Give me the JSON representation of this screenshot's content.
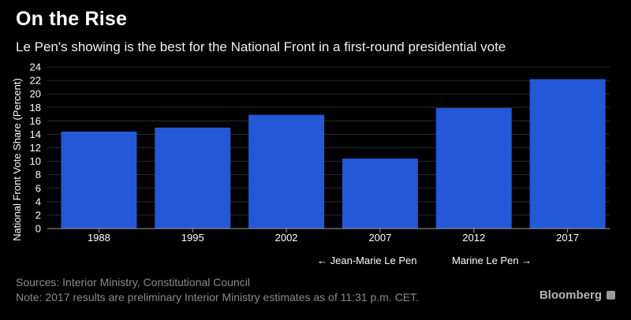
{
  "title": "On the Rise",
  "subtitle": "Le Pen's showing is the best for the National Front in a first-round presidential vote",
  "chart_data": {
    "type": "bar",
    "categories": [
      "1988",
      "1995",
      "2002",
      "2007",
      "2012",
      "2017"
    ],
    "values": [
      14.4,
      15.0,
      16.9,
      10.4,
      17.9,
      22.2
    ],
    "ylabel": "National Front Vote Share (Percent)",
    "xlabel": "",
    "ylim": [
      0,
      24
    ],
    "yticks": [
      0,
      2,
      4,
      6,
      8,
      10,
      12,
      14,
      16,
      18,
      20,
      22,
      24
    ],
    "grid": true,
    "bar_color": "#2358d8",
    "annotations": [
      "← Jean-Marie Le Pen",
      "Marine Le Pen →"
    ]
  },
  "footer": {
    "sources": "Sources: Interior Ministry, Constitutional Council",
    "note": "Note: 2017 results are preliminary Interior Ministry estimates as of 11:31 p.m. CET."
  },
  "brand": "Bloomberg"
}
